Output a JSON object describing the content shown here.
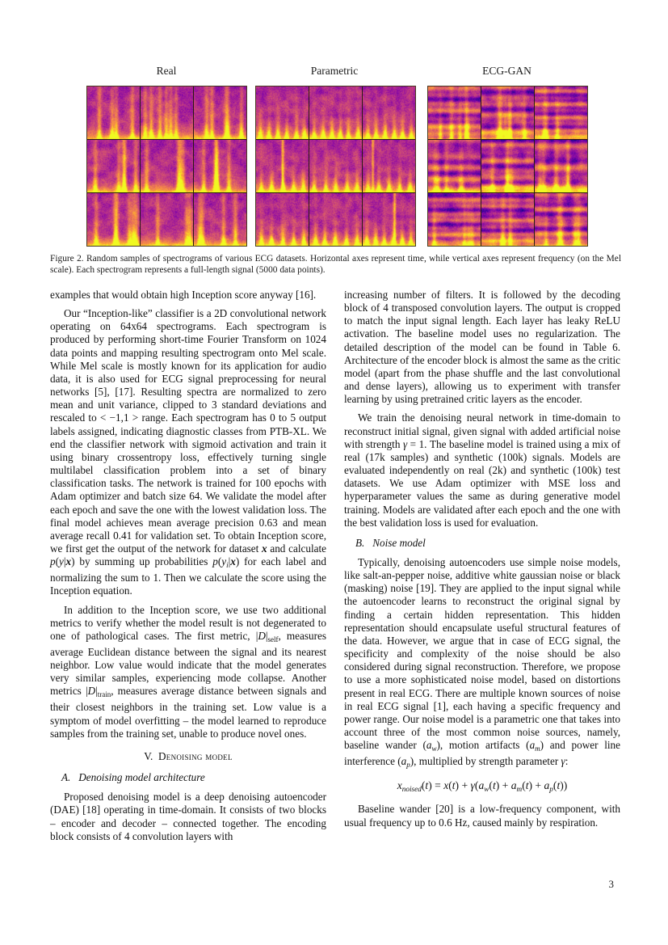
{
  "figure": {
    "labels": [
      "Real",
      "Parametric",
      "ECG-GAN"
    ],
    "caption": "Figure 2. Random samples of spectrograms of various ECG datasets. Horizontal axes represent time, while vertical axes represent frequency (on the Mel scale).  Each spectrogram represents a full-length signal (5000 data points)."
  },
  "columns": {
    "left": [
      {
        "type": "p",
        "noindent": true,
        "segments": [
          {
            "t": "examples that would obtain high Inception score anyway [16]."
          }
        ]
      },
      {
        "type": "p",
        "segments": [
          {
            "t": "Our “Inception-like” classifier is a 2D convolutional network operating on 64x64 spectrograms. Each spectrogram is produced by performing short-time Fourier Transform on 1024 data points and mapping resulting spectrogram onto Mel scale. While Mel scale is mostly known for its application for audio data, it is also used for ECG signal preprocessing for neural networks [5], [17]. Resulting spectra are normalized to zero mean and unit variance, clipped to 3 standard deviations and rescaled to < −1,1 > range. Each spectrogram has 0 to 5 output labels assigned, indicating diagnostic classes from PTB-XL. We end the classifier network with sigmoid activation and train it using binary crossentropy loss, effectively turning single multilabel classification problem into a set of binary classification tasks. The network is trained for 100 epochs with Adam optimizer and batch size 64. We validate the model after each epoch and save the one with the lowest validation loss. The final model achieves mean average precision 0.63 and mean average recall 0.41 for validation set. To obtain Inception score, we first get the output of the network for dataset "
          },
          {
            "t": "x",
            "style": "bi"
          },
          {
            "t": " and calculate "
          },
          {
            "t": "p",
            "style": "i"
          },
          {
            "t": "("
          },
          {
            "t": "y",
            "style": "i"
          },
          {
            "t": "|"
          },
          {
            "t": "x",
            "style": "bi"
          },
          {
            "t": ")"
          },
          {
            "t": " by summing up probabilities "
          },
          {
            "t": "p",
            "style": "i"
          },
          {
            "t": "("
          },
          {
            "t": "y",
            "style": "i"
          },
          {
            "t": "i",
            "style": "isub"
          },
          {
            "t": "|"
          },
          {
            "t": "x",
            "style": "bi"
          },
          {
            "t": ")"
          },
          {
            "t": " for each label and normalizing the sum to 1. Then we calculate the score using the Inception equation."
          }
        ]
      },
      {
        "type": "p",
        "segments": [
          {
            "t": "In addition to the Inception score, we use two additional metrics to verify whether the model result is not degenerated to one of pathological cases. The first metric, "
          },
          {
            "t": "|"
          },
          {
            "t": "D",
            "style": "i"
          },
          {
            "t": "|"
          },
          {
            "t": "self",
            "style": "sub"
          },
          {
            "t": ", measures average Euclidean distance between the signal and its nearest neighbor. Low value would indicate that the model generates very similar samples, experiencing mode collapse. Another metrics "
          },
          {
            "t": "|"
          },
          {
            "t": "D",
            "style": "i"
          },
          {
            "t": "|"
          },
          {
            "t": "train",
            "style": "sub"
          },
          {
            "t": ", measures average distance between signals and their closest neighbors in the training set. Low value is a symptom of model overfitting – the model learned to reproduce samples from the training set, unable to produce novel ones."
          }
        ]
      },
      {
        "type": "h1",
        "segments": [
          {
            "t": "V.  "
          },
          {
            "t": "Denoising model",
            "style": "sc"
          }
        ]
      },
      {
        "type": "h2",
        "segments": [
          {
            "t": "A.   Denoising model architecture",
            "style": "i"
          }
        ]
      },
      {
        "type": "p",
        "segments": [
          {
            "t": "Proposed denoising model is a deep denoising autoencoder (DAE) [18] operating in time-domain. It consists of two blocks – encoder and decoder – connected together. The encoding block consists of 4 convolution layers with"
          }
        ]
      }
    ],
    "right": [
      {
        "type": "p",
        "noindent": true,
        "segments": [
          {
            "t": "increasing number of filters. It is followed by the decoding block of 4 transposed convolution layers. The output is cropped to match the input signal length. Each layer has leaky ReLU activation. The baseline model uses no regularization. The detailed description of the model can be found in Table 6. Architecture of the encoder block is almost the same as the critic model (apart from the phase shuffle and the last convolutional and dense layers), allowing us to experiment with transfer learning by using pretrained critic layers as the encoder."
          }
        ]
      },
      {
        "type": "p",
        "segments": [
          {
            "t": "We train the denoising neural network in time-domain to reconstruct initial signal, given signal with added artificial noise with strength "
          },
          {
            "t": "γ",
            "style": "i"
          },
          {
            "t": " = 1. The baseline model is trained using a mix of real (17k samples) and synthetic (100k) signals. Models are evaluated independently on real (2k) and synthetic (100k) test datasets. We use Adam optimizer with MSE loss and hyperparameter values the same as during generative model training. Models are validated after each epoch and the one with the best validation loss is used for evaluation."
          }
        ]
      },
      {
        "type": "h2",
        "segments": [
          {
            "t": "B.   Noise model",
            "style": "i"
          }
        ]
      },
      {
        "type": "p",
        "segments": [
          {
            "t": "Typically, denoising autoencoders use simple noise models, like salt-an-pepper noise, additive white gaussian noise or black (masking) noise [19]. They are applied to the input signal while the autoencoder learns to reconstruct the original signal by finding a certain hidden representation. This hidden representation should encapsulate useful structural features of the data. However, we argue that in case of ECG signal, the specificity and complexity of the noise should be also considered during signal reconstruction. Therefore, we propose to use a more sophisticated noise model, based on distortions present in real ECG. There are multiple known sources of noise in real ECG signal [1], each having a specific frequency and power range. Our noise model is a parametric one that takes into account three of the most common noise sources, namely, baseline wander ("
          },
          {
            "t": "a",
            "style": "i"
          },
          {
            "t": "w",
            "style": "isub"
          },
          {
            "t": "), motion artifacts ("
          },
          {
            "t": "a",
            "style": "i"
          },
          {
            "t": "m",
            "style": "isub"
          },
          {
            "t": ") and power line interference ("
          },
          {
            "t": "a",
            "style": "i"
          },
          {
            "t": "p",
            "style": "isub"
          },
          {
            "t": "), multiplied by strength parameter "
          },
          {
            "t": "γ",
            "style": "i"
          },
          {
            "t": ":"
          }
        ]
      },
      {
        "type": "eq",
        "segments": [
          {
            "t": "x",
            "style": "i"
          },
          {
            "t": "noised",
            "style": "isub"
          },
          {
            "t": "("
          },
          {
            "t": "t",
            "style": "i"
          },
          {
            "t": ") = "
          },
          {
            "t": "x",
            "style": "i"
          },
          {
            "t": "("
          },
          {
            "t": "t",
            "style": "i"
          },
          {
            "t": ") + "
          },
          {
            "t": "γ",
            "style": "i"
          },
          {
            "t": "("
          },
          {
            "t": "a",
            "style": "i"
          },
          {
            "t": "w",
            "style": "isub"
          },
          {
            "t": "("
          },
          {
            "t": "t",
            "style": "i"
          },
          {
            "t": ") + "
          },
          {
            "t": "a",
            "style": "i"
          },
          {
            "t": "m",
            "style": "isub"
          },
          {
            "t": "("
          },
          {
            "t": "t",
            "style": "i"
          },
          {
            "t": ") + "
          },
          {
            "t": "a",
            "style": "i"
          },
          {
            "t": "p",
            "style": "isub"
          },
          {
            "t": "("
          },
          {
            "t": "t",
            "style": "i"
          },
          {
            "t": "))"
          }
        ]
      },
      {
        "type": "p",
        "segments": [
          {
            "t": "Baseline wander [20] is a low-frequency component, with usual frequency up to 0.6 Hz, caused mainly by respiration."
          }
        ]
      }
    ]
  },
  "page_number": "3"
}
